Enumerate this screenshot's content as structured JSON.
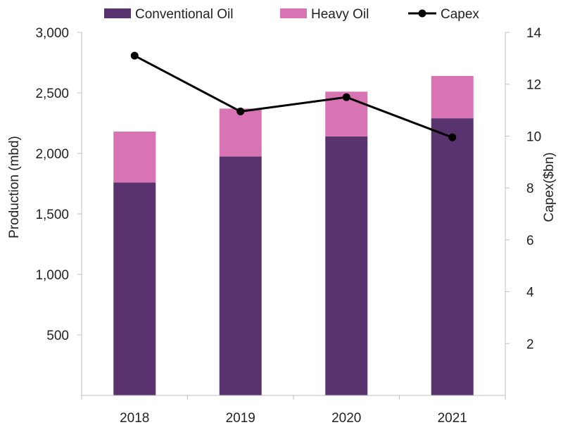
{
  "chart_data": {
    "type": "bar",
    "stacked": true,
    "categories": [
      "2018",
      "2019",
      "2020",
      "2021"
    ],
    "series": [
      {
        "name": "Conventional Oil",
        "type": "bar",
        "axis": "left",
        "color": "#58336E",
        "values": [
          1760,
          1975,
          2140,
          2290
        ]
      },
      {
        "name": "Heavy Oil",
        "type": "bar",
        "axis": "left",
        "color": "#D873B4",
        "values": [
          420,
          395,
          370,
          350
        ]
      },
      {
        "name": "Capex",
        "type": "line",
        "axis": "right",
        "color": "#000000",
        "values": [
          13.1,
          10.95,
          11.5,
          9.95
        ]
      }
    ],
    "ylabel": "Production (mbd)",
    "y2label": "Capex($bn)",
    "ylim": [
      0,
      3000
    ],
    "y2lim": [
      0,
      14
    ],
    "yticks": [
      "500",
      "1,000",
      "1,500",
      "2,000",
      "2,500",
      "3,000"
    ],
    "y2ticks": [
      "2",
      "4",
      "6",
      "8",
      "10",
      "12",
      "14"
    ],
    "legend_position": "top",
    "grid": false
  }
}
